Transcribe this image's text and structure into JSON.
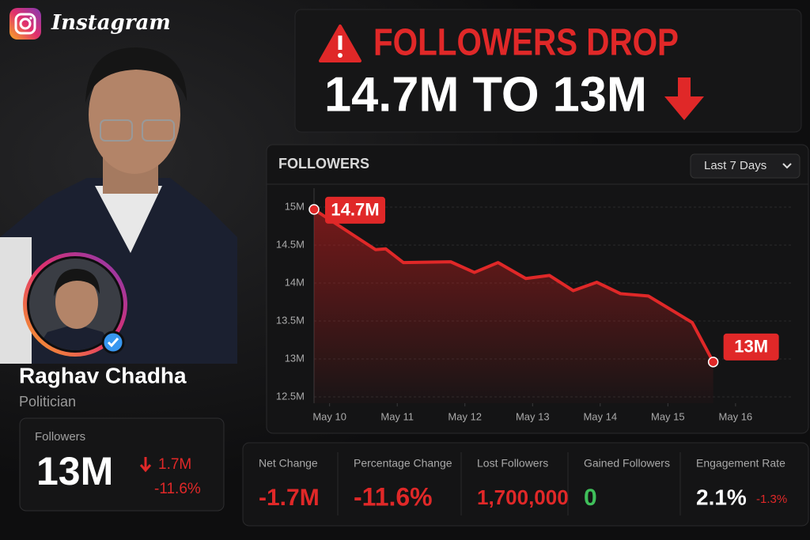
{
  "header": {
    "brand": "Instagram"
  },
  "alert": {
    "title": "FOLLOWERS DROP",
    "subtitle": "14.7M TO 13M"
  },
  "profile": {
    "name": "Raghav Chadha",
    "role": "Politician"
  },
  "followers_card": {
    "label": "Followers",
    "value": "13M",
    "change": "1.7M",
    "percent": "-11.6%"
  },
  "chart_data": {
    "type": "line",
    "title": "FOLLOWERS",
    "period": "Last 7 Days",
    "color": "#e02828",
    "x": [
      9.77,
      10.68,
      10.83,
      11.09,
      11.79,
      12.14,
      12.49,
      12.9,
      13.25,
      13.6,
      13.95,
      14.3,
      14.71,
      15.36,
      15.67
    ],
    "values": [
      14.97,
      14.44,
      14.45,
      14.27,
      14.28,
      14.14,
      14.27,
      14.06,
      14.1,
      13.9,
      14.01,
      13.86,
      13.83,
      13.48,
      12.96
    ],
    "annotations": [
      "14.7M",
      "13M"
    ],
    "xlim": [
      9.77,
      16.82
    ],
    "xticks": [
      {
        "value": 10,
        "label": "May 10"
      },
      {
        "value": 11,
        "label": "May 11"
      },
      {
        "value": 12,
        "label": "May 12"
      },
      {
        "value": 13,
        "label": "May 13"
      },
      {
        "value": 14,
        "label": "May 14"
      },
      {
        "value": 15,
        "label": "May 15"
      },
      {
        "value": 16,
        "label": "May 16"
      }
    ],
    "ylim": [
      12.5,
      15.25
    ],
    "yticks": [
      {
        "value": 12.5,
        "label": "12.5M"
      },
      {
        "value": 13,
        "label": "13M"
      },
      {
        "value": 13.5,
        "label": "13.5M"
      },
      {
        "value": 14,
        "label": "14M"
      },
      {
        "value": 14.5,
        "label": "14.5M"
      },
      {
        "value": 15,
        "label": "15M"
      }
    ],
    "grid": true
  },
  "stats": [
    {
      "label": "Net Change",
      "value": "-1.7M"
    },
    {
      "label": "Percentage Change",
      "value": "-11.6%"
    },
    {
      "label": "Lost Followers",
      "value": "1,700,000"
    },
    {
      "label": "Gained Followers",
      "value": "0"
    },
    {
      "label": "Engagement Rate",
      "value": "2.1%",
      "change": "-1.3%"
    }
  ]
}
